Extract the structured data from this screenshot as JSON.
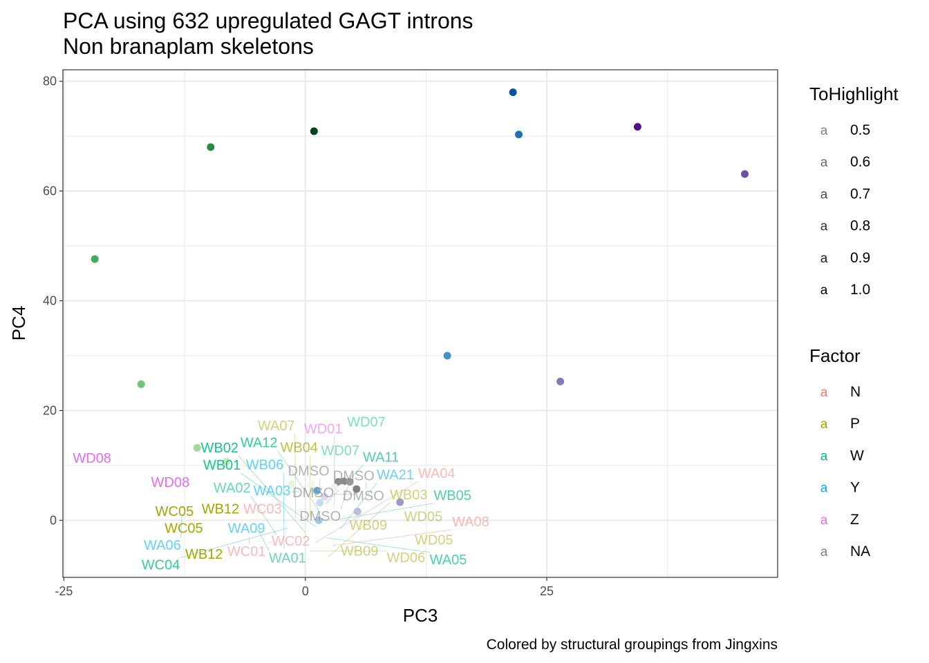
{
  "chart_data": {
    "type": "scatter",
    "title": "PCA using 632 upregulated GAGT introns",
    "subtitle": "Non branaplam skeletons",
    "caption": "Colored by structural groupings from Jingxins",
    "xlabel": "PC3",
    "ylabel": "PC4",
    "xlim": [
      -25.1,
      48.9
    ],
    "ylim": [
      -10.4,
      82.1
    ],
    "xticks": [
      -25,
      0,
      25
    ],
    "yticks": [
      0,
      20,
      40,
      60,
      80
    ],
    "grid": true,
    "legend_placement": "right",
    "legends": [
      {
        "title": "ToHighlight",
        "glyph": "a",
        "entries": [
          {
            "label": "0.5",
            "alpha": 0.5
          },
          {
            "label": "0.6",
            "alpha": 0.6
          },
          {
            "label": "0.7",
            "alpha": 0.7
          },
          {
            "label": "0.8",
            "alpha": 0.8
          },
          {
            "label": "0.9",
            "alpha": 0.9
          },
          {
            "label": "1.0",
            "alpha": 1.0
          }
        ]
      },
      {
        "title": "Factor",
        "glyph": "a",
        "entries": [
          {
            "label": "N",
            "color": "#F8766D"
          },
          {
            "label": "P",
            "color": "#A3A500"
          },
          {
            "label": "W",
            "color": "#00BF7D"
          },
          {
            "label": "Y",
            "color": "#00B0F6"
          },
          {
            "label": "Z",
            "color": "#E76BF3"
          },
          {
            "label": "NA",
            "color": "#7F7F7F"
          }
        ]
      }
    ],
    "points": [
      {
        "x": 21.5,
        "y": 78.0,
        "color": "#08519C"
      },
      {
        "x": 22.1,
        "y": 70.3,
        "color": "#2171B5"
      },
      {
        "x": 34.4,
        "y": 71.7,
        "color": "#4A1486"
      },
      {
        "x": 45.5,
        "y": 63.1,
        "color": "#6A51A3"
      },
      {
        "x": 0.9,
        "y": 70.9,
        "color": "#00441B"
      },
      {
        "x": -9.8,
        "y": 68.0,
        "color": "#238B45"
      },
      {
        "x": -21.8,
        "y": 47.6,
        "color": "#41AB5D"
      },
      {
        "x": -17.0,
        "y": 24.8,
        "color": "#74C476"
      },
      {
        "x": -11.2,
        "y": 13.2,
        "color": "#A1D99B"
      },
      {
        "x": -8.2,
        "y": 10.7,
        "color": "#C7E9C0"
      },
      {
        "x": 14.7,
        "y": 30.0,
        "color": "#4292C6"
      },
      {
        "x": 26.4,
        "y": 25.3,
        "color": "#807DBA"
      },
      {
        "x": 9.8,
        "y": 3.3,
        "color": "#9E9AC8"
      },
      {
        "x": 5.3,
        "y": 5.7,
        "color": "#808080"
      },
      {
        "x": 3.4,
        "y": 7.0,
        "color": "#8C8C8C"
      },
      {
        "x": 4.0,
        "y": 7.1,
        "color": "#8C8C8C"
      },
      {
        "x": 4.6,
        "y": 7.0,
        "color": "#999999"
      },
      {
        "x": -1.4,
        "y": 6.6,
        "color": "#E5F5E0"
      },
      {
        "x": 0.6,
        "y": 6.6,
        "color": "#EDF8E9"
      },
      {
        "x": 1.2,
        "y": 5.4,
        "color": "#6BAED6"
      },
      {
        "x": 3.0,
        "y": 6.0,
        "color": "#EFEDF5"
      },
      {
        "x": 3.8,
        "y": 5.9,
        "color": "#F7FBFF"
      },
      {
        "x": 2.0,
        "y": 4.3,
        "color": "#DADAEB"
      },
      {
        "x": 1.5,
        "y": 3.2,
        "color": "#C6DBEF"
      },
      {
        "x": 5.4,
        "y": 1.6,
        "color": "#BCBDDC"
      },
      {
        "x": 1.4,
        "y": 0.0,
        "color": "#9ECAE1"
      }
    ],
    "labels": [
      {
        "text": "WD07",
        "x": 6.6,
        "y": 17.7,
        "color": "#00BF7D",
        "alpha": 0.5
      },
      {
        "text": "WD07",
        "x": 3.9,
        "y": 12.5,
        "color": "#00BF7D",
        "alpha": 0.5
      },
      {
        "text": "WD08",
        "x": -21.8,
        "y": 11.1,
        "color": "#E76BF3",
        "alpha": 1.0
      },
      {
        "text": "WD08",
        "x": -13.7,
        "y": 6.7,
        "color": "#E76BF3",
        "alpha": 1.0
      },
      {
        "text": "WD05",
        "x": 12.5,
        "y": 0.5,
        "color": "#A3A500",
        "alpha": 0.5
      },
      {
        "text": "WD05",
        "x": 13.6,
        "y": -2.4,
        "color": "#A3A500",
        "alpha": 0.5
      },
      {
        "text": "WB12",
        "x": -8.5,
        "y": 1.9,
        "color": "#A3A500",
        "alpha": 1.0
      },
      {
        "text": "WB12",
        "x": -10.2,
        "y": -6.4,
        "color": "#A3A500",
        "alpha": 1.0
      },
      {
        "text": "WC05",
        "x": -12.4,
        "y": 1.4,
        "color": "#A3A500",
        "alpha": 1.0
      },
      {
        "text": "WC05",
        "x": -12.3,
        "y": -0.3,
        "color": "#A3A500",
        "alpha": 1.0
      },
      {
        "text": "WA06",
        "x": -12.8,
        "y": 0.8,
        "color": "#00B0F6",
        "alpha": 0.6
      },
      {
        "text": "WB09",
        "x": 6.8,
        "y": -1.1,
        "color": "#A3A500",
        "alpha": 0.5
      },
      {
        "text": "WB09",
        "x": 5.9,
        "y": -5.8,
        "color": "#A3A500",
        "alpha": 0.5
      },
      {
        "text": "DMSO",
        "x": 5.3,
        "y": 7.9,
        "color": "#7F7F7F",
        "alpha": 0.6
      },
      {
        "text": "DMSO",
        "x": 6.3,
        "y": 7.0,
        "color": "#7F7F7F",
        "alpha": 0.6
      },
      {
        "text": "DMSO",
        "x": 5.4,
        "y": 4.8,
        "color": "#7F7F7F",
        "alpha": 0.6
      },
      {
        "text": "DMSO",
        "x": 1.5,
        "y": 6.0,
        "color": "#7F7F7F",
        "alpha": 0.6
      },
      {
        "text": "DMSO",
        "x": 4.4,
        "y": 6.1,
        "color": "#7F7F7F",
        "alpha": 0.6
      },
      {
        "text": "WA03",
        "x": -0.6,
        "y": 5.2,
        "color": "#00B0F6",
        "alpha": 0.6
      },
      {
        "text": "WA09",
        "x": -5.8,
        "y": -0.3,
        "color": "#00B0F6",
        "alpha": 0.6
      },
      {
        "text": "WC03",
        "x": -5.0,
        "y": 0.5,
        "color": "#F8766D",
        "alpha": 0.5
      },
      {
        "text": "WC01",
        "x": -5.8,
        "y": -3.1,
        "color": "#F8766D",
        "alpha": 0.5
      },
      {
        "text": "WC02",
        "x": -3.8,
        "y": -4.0,
        "color": "#F8766D",
        "alpha": 0.5
      },
      {
        "text": "WA01",
        "x": -5.0,
        "y": -1.5,
        "color": "#00BF7D",
        "alpha": 0.6
      },
      {
        "text": "WA02",
        "x": -3.0,
        "y": -2.6,
        "color": "#00BF7D",
        "alpha": 0.6
      },
      {
        "text": "WB06",
        "x": -2.2,
        "y": -5.3,
        "color": "#00B0F6",
        "alpha": 0.6
      },
      {
        "text": "WD06",
        "x": 0.4,
        "y": -5.6,
        "color": "#A3A500",
        "alpha": 0.5
      },
      {
        "text": "WB03",
        "x": 2.4,
        "y": -6.6,
        "color": "#A3A500",
        "alpha": 0.5
      },
      {
        "text": "WB04",
        "x": 0.5,
        "y": 0.6,
        "color": "#A3A500",
        "alpha": 0.7
      },
      {
        "text": "WA11",
        "x": 2.1,
        "y": 3.0,
        "color": "#00BF7D",
        "alpha": 0.7
      },
      {
        "text": "WA12",
        "x": 1.5,
        "y": 1.5,
        "color": "#00BF7D",
        "alpha": 0.8
      },
      {
        "text": "WA21",
        "x": 3.6,
        "y": -1.6,
        "color": "#00B0F6",
        "alpha": 0.6
      },
      {
        "text": "WD01",
        "x": 3.0,
        "y": 2.6,
        "color": "#E76BF3",
        "alpha": 0.6
      },
      {
        "text": "WB01",
        "x": 1.1,
        "y": -1.2,
        "color": "#00BF7D",
        "alpha": 0.9
      },
      {
        "text": "WB02",
        "x": 0.0,
        "y": -2.2,
        "color": "#00BF7D",
        "alpha": 0.9
      },
      {
        "text": "WA05",
        "x": 2.2,
        "y": -3.2,
        "color": "#00BF7D",
        "alpha": 0.7
      },
      {
        "text": "WA04",
        "x": 1.0,
        "y": -4.1,
        "color": "#F8766D",
        "alpha": 0.5
      },
      {
        "text": "WC04",
        "x": -1.8,
        "y": -1.4,
        "color": "#00BF7D",
        "alpha": 0.8
      },
      {
        "text": "WB05",
        "x": 3.5,
        "y": 0.2,
        "color": "#00BF7D",
        "alpha": 0.7
      },
      {
        "text": "WA07",
        "x": -1.0,
        "y": 0.4,
        "color": "#A3A500",
        "alpha": 0.5
      },
      {
        "text": "WA08",
        "x": 2.8,
        "y": -4.6,
        "color": "#F8766D",
        "alpha": 0.5
      }
    ]
  }
}
